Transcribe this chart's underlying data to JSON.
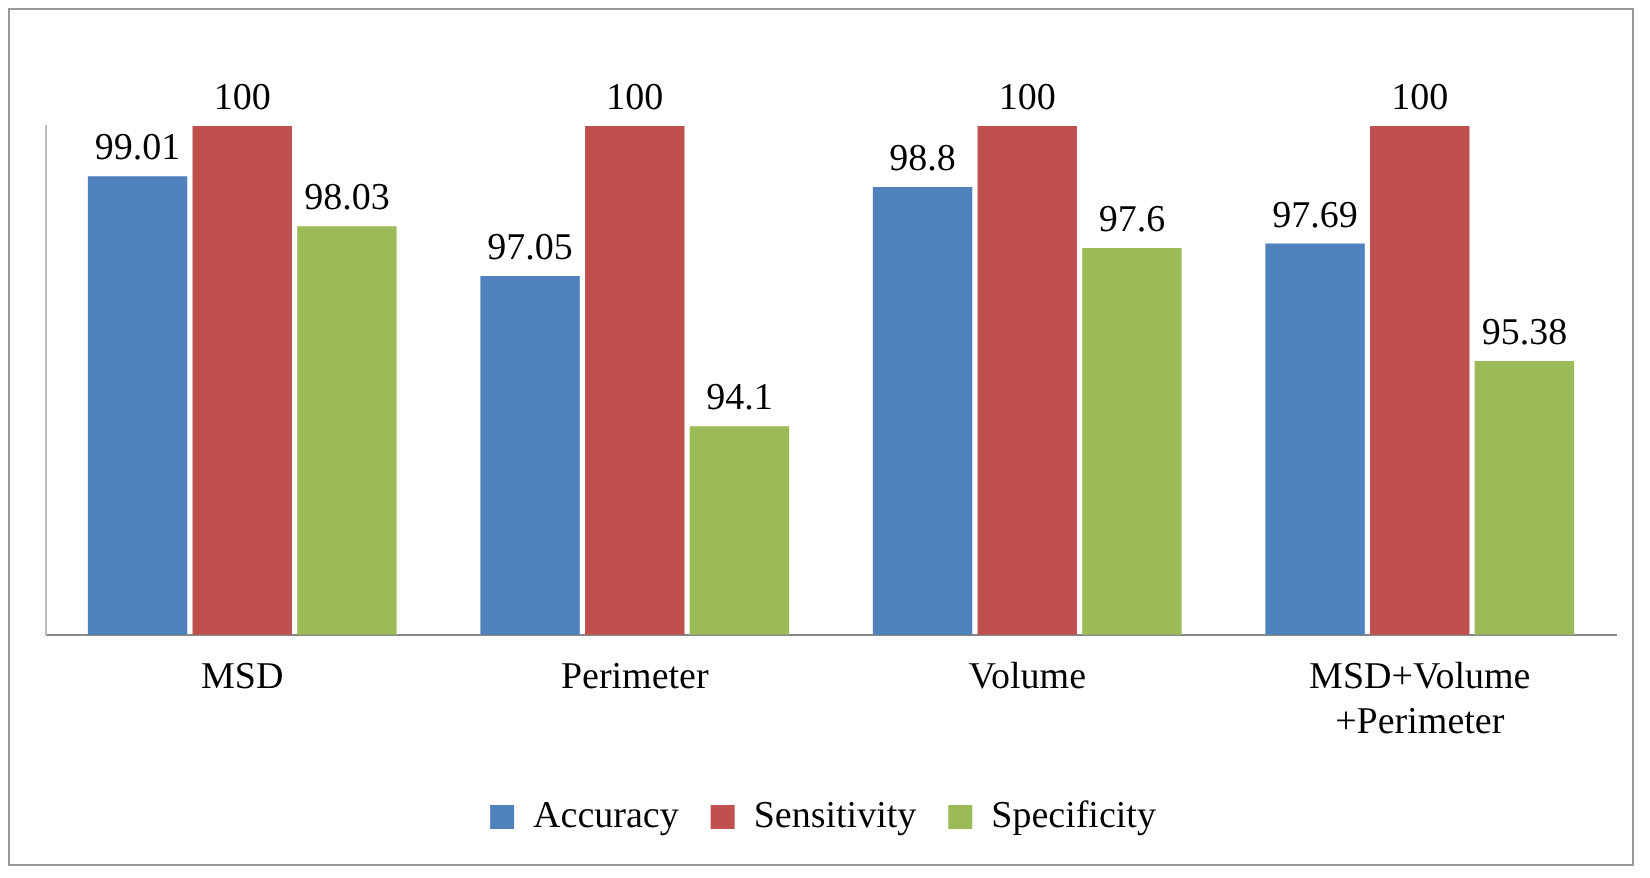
{
  "chart_data": {
    "type": "bar",
    "categories": [
      "MSD",
      "Perimeter",
      "Volume",
      "MSD+Volume +Perimeter"
    ],
    "series": [
      {
        "name": "Accuracy",
        "color": "#4f81bd",
        "values": [
          99.01,
          97.05,
          98.8,
          97.69
        ]
      },
      {
        "name": "Sensitivity",
        "color": "#c0504d",
        "values": [
          100,
          100,
          100,
          100
        ]
      },
      {
        "name": "Specificity",
        "color": "#9bbb59",
        "values": [
          98.03,
          94.1,
          97.6,
          95.38
        ]
      }
    ],
    "ylim": [
      90,
      100
    ],
    "tick_labels": "x",
    "data_labels": true,
    "grid": false,
    "legend": "bottom"
  }
}
